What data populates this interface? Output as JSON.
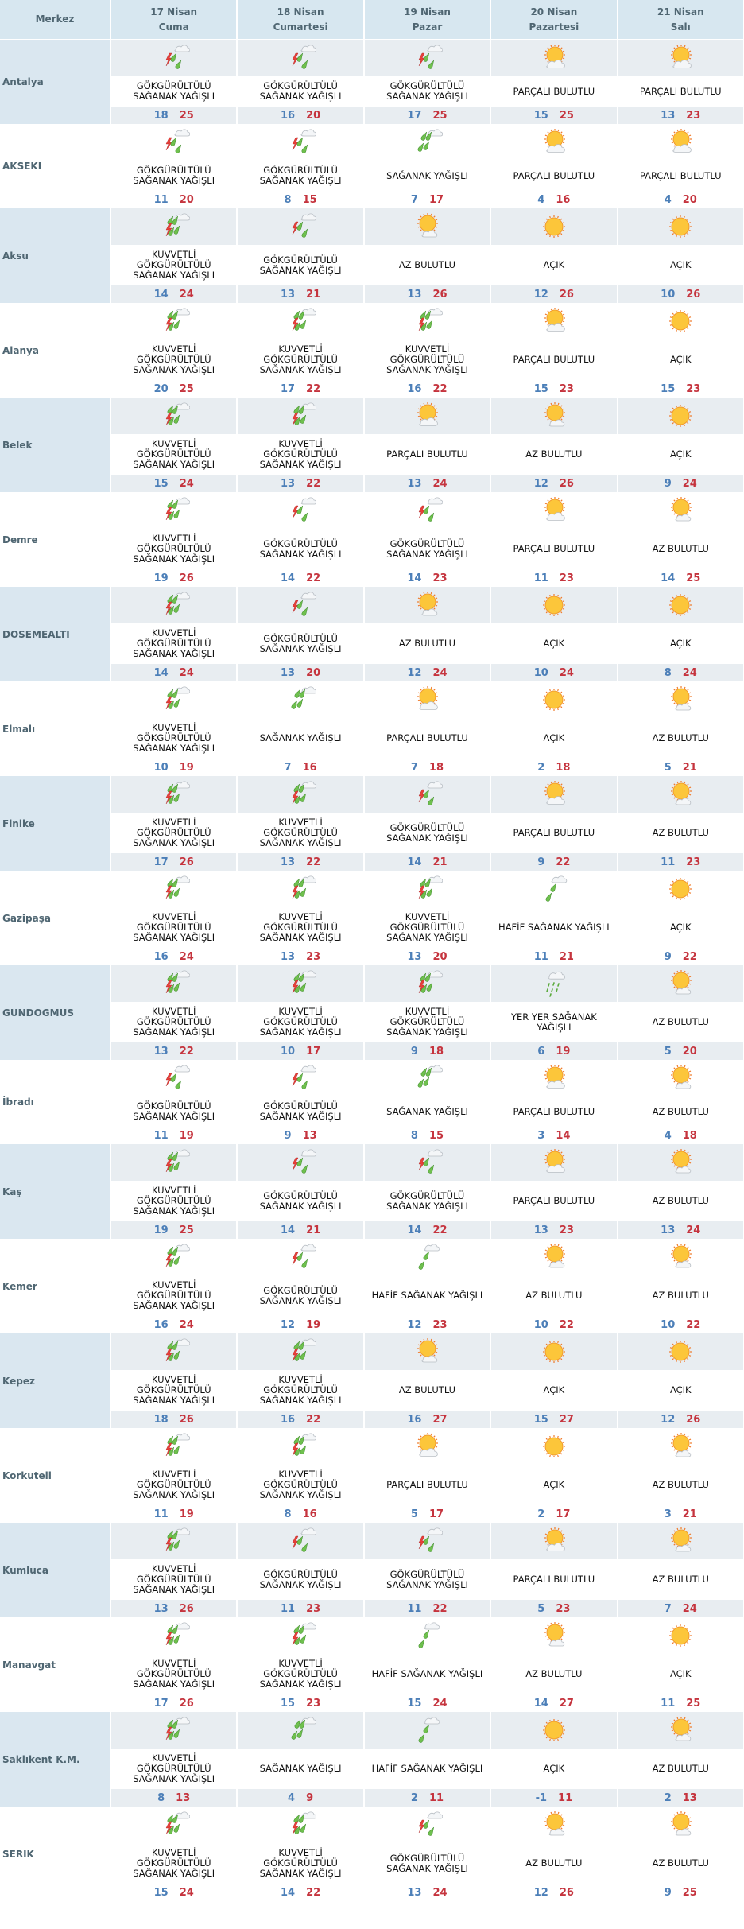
{
  "header": {
    "city_label": "Merkez",
    "days": [
      {
        "date": "17 Nisan",
        "weekday": "Cuma"
      },
      {
        "date": "18 Nisan",
        "weekday": "Cumartesi"
      },
      {
        "date": "19 Nisan",
        "weekday": "Pazar"
      },
      {
        "date": "20 Nisan",
        "weekday": "Pazartesi"
      },
      {
        "date": "21 Nisan",
        "weekday": "Salı"
      }
    ]
  },
  "colors": {
    "low": "#4c7fb8",
    "high": "#c5343e",
    "header_bg": "#d7e7f0",
    "alt_bg": "#e8edf1"
  },
  "conditions": {
    "KUV": {
      "text": "KUVVETLİ\nGÖKGÜRÜLTÜLÜ\nSAĞANAK YAĞIŞLI",
      "icon": "heavy-thunderstorm-icon"
    },
    "GOK": {
      "text": "GÖKGÜRÜLTÜLÜ\nSAĞANAK YAĞIŞLI",
      "icon": "thunderstorm-icon"
    },
    "SAG": {
      "text": "SAĞANAK YAĞIŞLI",
      "icon": "rain-showers-icon"
    },
    "HAF": {
      "text": "HAFİF SAĞANAK YAĞIŞLI",
      "icon": "light-rain-icon"
    },
    "YER": {
      "text": "YER YER SAĞANAK\nYAĞIŞLI",
      "icon": "scattered-showers-icon"
    },
    "PAR": {
      "text": "PARÇALI BULUTLU",
      "icon": "partly-cloudy-icon"
    },
    "AZ": {
      "text": "AZ BULUTLU",
      "icon": "few-clouds-icon"
    },
    "ACK": {
      "text": "AÇIK",
      "icon": "sunny-icon"
    }
  },
  "rows": [
    {
      "city": "Antalya",
      "cells": [
        [
          "GOK",
          18,
          25
        ],
        [
          "GOK",
          16,
          20
        ],
        [
          "GOK",
          17,
          25
        ],
        [
          "PAR",
          15,
          25
        ],
        [
          "PAR",
          13,
          23
        ]
      ]
    },
    {
      "city": "AKSEKI",
      "cells": [
        [
          "GOK",
          11,
          20
        ],
        [
          "GOK",
          8,
          15
        ],
        [
          "SAG",
          7,
          17
        ],
        [
          "PAR",
          4,
          16
        ],
        [
          "PAR",
          4,
          20
        ]
      ]
    },
    {
      "city": "Aksu",
      "cells": [
        [
          "KUV",
          14,
          24
        ],
        [
          "GOK",
          13,
          21
        ],
        [
          "AZ",
          13,
          26
        ],
        [
          "ACK",
          12,
          26
        ],
        [
          "ACK",
          10,
          26
        ]
      ]
    },
    {
      "city": "Alanya",
      "cells": [
        [
          "KUV",
          20,
          25
        ],
        [
          "KUV",
          17,
          22
        ],
        [
          "KUV",
          16,
          22
        ],
        [
          "PAR",
          15,
          23
        ],
        [
          "ACK",
          15,
          23
        ]
      ]
    },
    {
      "city": "Belek",
      "cells": [
        [
          "KUV",
          15,
          24
        ],
        [
          "KUV",
          13,
          22
        ],
        [
          "PAR",
          13,
          24
        ],
        [
          "AZ",
          12,
          26
        ],
        [
          "ACK",
          9,
          24
        ]
      ]
    },
    {
      "city": "Demre",
      "cells": [
        [
          "KUV",
          19,
          26
        ],
        [
          "GOK",
          14,
          22
        ],
        [
          "GOK",
          14,
          23
        ],
        [
          "PAR",
          11,
          23
        ],
        [
          "AZ",
          14,
          25
        ]
      ]
    },
    {
      "city": "DOSEMEALTI",
      "cells": [
        [
          "KUV",
          14,
          24
        ],
        [
          "GOK",
          13,
          20
        ],
        [
          "AZ",
          12,
          24
        ],
        [
          "ACK",
          10,
          24
        ],
        [
          "ACK",
          8,
          24
        ]
      ]
    },
    {
      "city": "Elmalı",
      "cells": [
        [
          "KUV",
          10,
          19
        ],
        [
          "SAG",
          7,
          16
        ],
        [
          "PAR",
          7,
          18
        ],
        [
          "ACK",
          2,
          18
        ],
        [
          "AZ",
          5,
          21
        ]
      ]
    },
    {
      "city": "Finike",
      "cells": [
        [
          "KUV",
          17,
          26
        ],
        [
          "KUV",
          13,
          22
        ],
        [
          "GOK",
          14,
          21
        ],
        [
          "PAR",
          9,
          22
        ],
        [
          "AZ",
          11,
          23
        ]
      ]
    },
    {
      "city": "Gazipaşa",
      "cells": [
        [
          "KUV",
          16,
          24
        ],
        [
          "KUV",
          13,
          23
        ],
        [
          "KUV",
          13,
          20
        ],
        [
          "HAF",
          11,
          21
        ],
        [
          "ACK",
          9,
          22
        ]
      ]
    },
    {
      "city": "GUNDOGMUS",
      "cells": [
        [
          "KUV",
          13,
          22
        ],
        [
          "KUV",
          10,
          17
        ],
        [
          "KUV",
          9,
          18
        ],
        [
          "YER",
          6,
          19
        ],
        [
          "AZ",
          5,
          20
        ]
      ]
    },
    {
      "city": "İbradı",
      "cells": [
        [
          "GOK",
          11,
          19
        ],
        [
          "GOK",
          9,
          13
        ],
        [
          "SAG",
          8,
          15
        ],
        [
          "PAR",
          3,
          14
        ],
        [
          "AZ",
          4,
          18
        ]
      ]
    },
    {
      "city": "Kaş",
      "cells": [
        [
          "KUV",
          19,
          25
        ],
        [
          "GOK",
          14,
          21
        ],
        [
          "GOK",
          14,
          22
        ],
        [
          "PAR",
          13,
          23
        ],
        [
          "AZ",
          13,
          24
        ]
      ]
    },
    {
      "city": "Kemer",
      "cells": [
        [
          "KUV",
          16,
          24
        ],
        [
          "GOK",
          12,
          19
        ],
        [
          "HAF",
          12,
          23
        ],
        [
          "AZ",
          10,
          22
        ],
        [
          "AZ",
          10,
          22
        ]
      ]
    },
    {
      "city": "Kepez",
      "cells": [
        [
          "KUV",
          18,
          26
        ],
        [
          "KUV",
          16,
          22
        ],
        [
          "AZ",
          16,
          27
        ],
        [
          "ACK",
          15,
          27
        ],
        [
          "ACK",
          12,
          26
        ]
      ]
    },
    {
      "city": "Korkuteli",
      "cells": [
        [
          "KUV",
          11,
          19
        ],
        [
          "KUV",
          8,
          16
        ],
        [
          "PAR",
          5,
          17
        ],
        [
          "ACK",
          2,
          17
        ],
        [
          "AZ",
          3,
          21
        ]
      ]
    },
    {
      "city": "Kumluca",
      "cells": [
        [
          "KUV",
          13,
          26
        ],
        [
          "GOK",
          11,
          23
        ],
        [
          "GOK",
          11,
          22
        ],
        [
          "PAR",
          5,
          23
        ],
        [
          "AZ",
          7,
          24
        ]
      ]
    },
    {
      "city": "Manavgat",
      "cells": [
        [
          "KUV",
          17,
          26
        ],
        [
          "KUV",
          15,
          23
        ],
        [
          "HAF",
          15,
          24
        ],
        [
          "AZ",
          14,
          27
        ],
        [
          "ACK",
          11,
          25
        ]
      ]
    },
    {
      "city": "Saklıkent K.M.",
      "cells": [
        [
          "KUV",
          8,
          13
        ],
        [
          "SAG",
          4,
          9
        ],
        [
          "HAF",
          2,
          11
        ],
        [
          "ACK",
          -1,
          11
        ],
        [
          "AZ",
          2,
          13
        ]
      ]
    },
    {
      "city": "SERIK",
      "cells": [
        [
          "KUV",
          15,
          24
        ],
        [
          "KUV",
          14,
          22
        ],
        [
          "GOK",
          13,
          24
        ],
        [
          "AZ",
          12,
          26
        ],
        [
          "AZ",
          9,
          25
        ]
      ]
    }
  ]
}
